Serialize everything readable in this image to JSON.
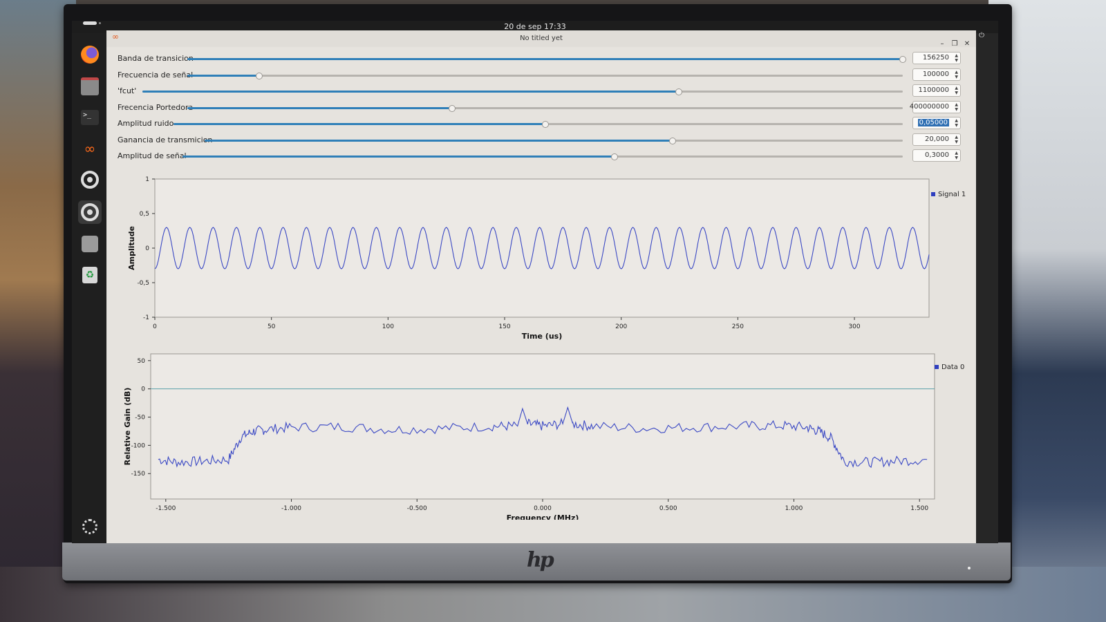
{
  "topbar": {
    "datetime": "20 de sep  17:33"
  },
  "dock": {
    "items": [
      {
        "icon": "firefox-icon"
      },
      {
        "icon": "files-icon"
      },
      {
        "icon": "terminal-icon"
      },
      {
        "icon": "gnuradio-icon"
      },
      {
        "icon": "software-updater-icon"
      },
      {
        "icon": "settings-icon"
      },
      {
        "icon": "disc-icon"
      },
      {
        "icon": "trash-icon"
      },
      {
        "icon": "show-apps-icon"
      }
    ]
  },
  "window": {
    "title": "No titled yet"
  },
  "controls": [
    {
      "label": "Banda de transicion",
      "value": "156250",
      "fraction": 1.0
    },
    {
      "label": "Frecuencia de señal",
      "value": "100000",
      "fraction": 0.1
    },
    {
      "label": "'fcut'",
      "value": "1100000",
      "fraction": 0.705
    },
    {
      "label": "Frecencia Portedora",
      "value": "400000000",
      "fraction": 0.37
    },
    {
      "label": "Amplitud ruido",
      "value": "0,05000",
      "fraction": 0.51,
      "selected": true
    },
    {
      "label": "Ganancia de transmicion",
      "value": "20,000",
      "fraction": 0.67
    },
    {
      "label": "Amplitud de señal",
      "value": "0,3000",
      "fraction": 0.6
    }
  ],
  "chart_data": [
    {
      "type": "line",
      "xlabel": "Time (us)",
      "ylabel": "Amplitude",
      "xlim": [
        0,
        332
      ],
      "ylim": [
        -1,
        1
      ],
      "xticks": [
        "0",
        "50",
        "100",
        "150",
        "200",
        "250",
        "300"
      ],
      "yticks": [
        "1",
        "0,5",
        "0",
        "-0,5",
        "-1"
      ],
      "series": [
        {
          "name": "Signal 1",
          "function": "sine",
          "amplitude": 0.3,
          "frequency_mhz": 0.1,
          "phase_deg": -90
        }
      ],
      "grid": true,
      "legend": "top-right"
    },
    {
      "type": "line",
      "xlabel": "Frequency (MHz)",
      "ylabel": "Relative Gain (dB)",
      "xlim": [
        -1.56,
        1.56
      ],
      "ylim": [
        -195,
        62
      ],
      "xticks": [
        "-1.500",
        "-1.000",
        "-0.500",
        "0.000",
        "0.500",
        "1.000",
        "1.500"
      ],
      "yticks": [
        "50",
        "0",
        "-50",
        "-100",
        "-150"
      ],
      "series": [
        {
          "name": "Data 0",
          "x": [
            -1.53,
            -1.45,
            -1.35,
            -1.25,
            -1.2,
            -1.15,
            -1.1,
            -1.0,
            -0.8,
            -0.6,
            -0.4,
            -0.2,
            -0.1,
            -0.08,
            -0.06,
            0.0,
            0.08,
            0.1,
            0.12,
            0.2,
            0.4,
            0.6,
            0.8,
            0.95,
            1.05,
            1.1,
            1.15,
            1.2,
            1.3,
            1.4,
            1.53
          ],
          "y": [
            -125,
            -130,
            -128,
            -125,
            -85,
            -75,
            -72,
            -68,
            -67,
            -72,
            -70,
            -66,
            -66,
            -35,
            -62,
            -66,
            -62,
            -33,
            -62,
            -66,
            -70,
            -68,
            -66,
            -65,
            -68,
            -75,
            -88,
            -128,
            -130,
            -128,
            -125
          ]
        }
      ],
      "grid": true,
      "legend": "top-right"
    }
  ]
}
